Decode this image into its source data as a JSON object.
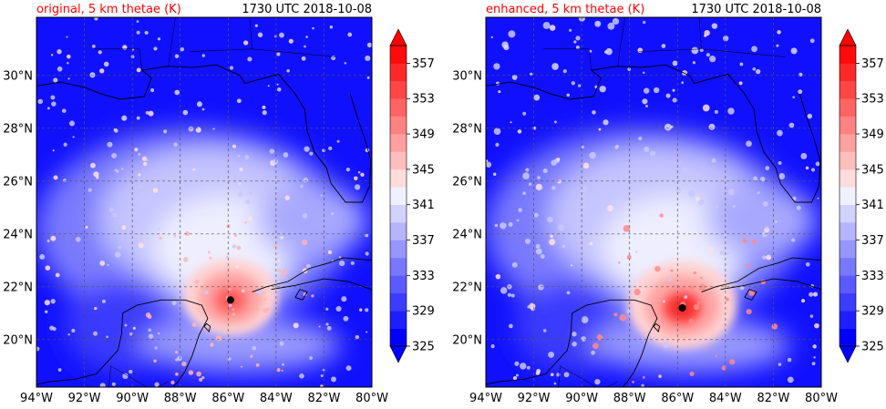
{
  "panels": [
    {
      "title": "original, 5 km thetae (K)",
      "timestamp": "1730 UTC 2018-10-08",
      "storm_center": {
        "lon": -85.9,
        "lat": 21.5
      }
    },
    {
      "title": "enhanced, 5 km thetae (K)",
      "timestamp": "1730 UTC 2018-10-08",
      "storm_center": {
        "lon": -85.8,
        "lat": 21.2
      }
    }
  ],
  "title_color": "#ff0000",
  "map_extent": {
    "lon": [
      -94,
      -80
    ],
    "lat": [
      18.2,
      32.2
    ]
  },
  "lon_ticks": [
    {
      "value": -94,
      "label": "94°W"
    },
    {
      "value": -92,
      "label": "92°W"
    },
    {
      "value": -90,
      "label": "90°W"
    },
    {
      "value": -88,
      "label": "88°W"
    },
    {
      "value": -86,
      "label": "86°W"
    },
    {
      "value": -84,
      "label": "84°W"
    },
    {
      "value": -82,
      "label": "82°W"
    },
    {
      "value": -80,
      "label": "80°W"
    }
  ],
  "lat_ticks": [
    {
      "value": 20,
      "label": "20°N"
    },
    {
      "value": 22,
      "label": "22°N"
    },
    {
      "value": 24,
      "label": "24°N"
    },
    {
      "value": 26,
      "label": "26°N"
    },
    {
      "value": 28,
      "label": "28°N"
    },
    {
      "value": 30,
      "label": "30°N"
    }
  ],
  "colorbar": {
    "min": 325,
    "max": 359,
    "step": 2,
    "tick_labels": [
      "325",
      "329",
      "333",
      "337",
      "341",
      "345",
      "349",
      "353",
      "357"
    ],
    "tick_values": [
      325,
      329,
      333,
      337,
      341,
      345,
      349,
      353,
      357
    ],
    "colors": [
      "#0000ff",
      "#1e1eff",
      "#3c3cff",
      "#5a5aff",
      "#7878ff",
      "#9696ff",
      "#b4b4ff",
      "#d2d2ff",
      "#f0f0ff",
      "#ffdcdc",
      "#ffbebe",
      "#ffa0a0",
      "#ff8282",
      "#ff6464",
      "#ff4646",
      "#ff2828",
      "#ff0a0a"
    ],
    "under_color": "#0000ff",
    "over_color": "#ff0000"
  }
}
